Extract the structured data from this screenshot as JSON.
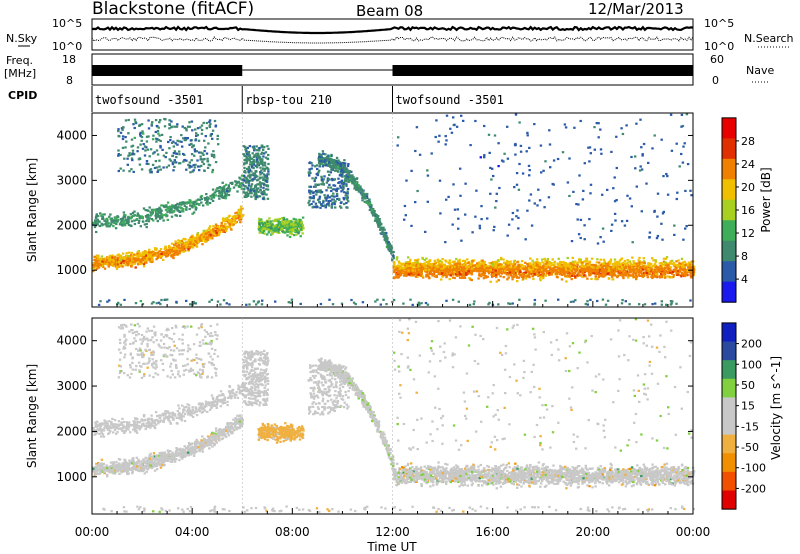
{
  "header": {
    "station": "Blackstone (fitACF)",
    "beam": "Beam 08",
    "date": "12/Mar/2013"
  },
  "noise_panel": {
    "left_label": "N.Sky",
    "right_label": "N.Search",
    "left_ticks": [
      "10^5",
      "10^0"
    ],
    "right_ticks": [
      "10^5",
      "10^0"
    ]
  },
  "freq_panel": {
    "left_label_1": "Freq.",
    "left_label_2": "[MHz]",
    "left_ticks": [
      "18",
      "8"
    ],
    "right_label": "Nave",
    "right_ticks": [
      "60",
      "0"
    ]
  },
  "cpid": {
    "label": "CPID",
    "segments": [
      {
        "name": "twofsound -3501",
        "start": 0,
        "end": 6
      },
      {
        "name": "rbsp-tou 210",
        "start": 6,
        "end": 12
      },
      {
        "name": "twofsound -3501",
        "start": 12,
        "end": 24
      }
    ]
  },
  "chart_data": [
    {
      "type": "heatmap",
      "quantity": "Power",
      "ylabel": "Slant Range [km]",
      "ylim": [
        180,
        4500
      ],
      "yticks": [
        "1000",
        "2000",
        "3000",
        "4000"
      ],
      "xlim": [
        0,
        24
      ],
      "colorbar": {
        "label": "Power [dB]",
        "range": [
          0,
          32
        ],
        "ticks": [
          "28",
          "24",
          "20",
          "16",
          "12",
          "8",
          "4"
        ],
        "colors": [
          "#1a1aee",
          "#2a5aa8",
          "#3f8a6e",
          "#3fae58",
          "#a8d020",
          "#f0c000",
          "#f08000",
          "#e03000",
          "#e80000"
        ]
      }
    },
    {
      "type": "heatmap",
      "quantity": "Velocity",
      "ylabel": "Slant Range [km]",
      "ylim": [
        180,
        4500
      ],
      "yticks": [
        "1000",
        "2000",
        "3000",
        "4000"
      ],
      "xlim": [
        0,
        24
      ],
      "colorbar": {
        "label": "Velocity [m s^-1]",
        "range": [
          -250,
          250
        ],
        "ticks": [
          "200",
          "100",
          "50",
          "15",
          "-15",
          "-50",
          "-100",
          "-200"
        ],
        "colors": [
          "#e00000",
          "#f05000",
          "#f09000",
          "#f0b040",
          "#c8c8c8",
          "#c8c8c8",
          "#80d040",
          "#3a9a60",
          "#2a4aa0",
          "#1020c0"
        ]
      }
    }
  ],
  "x_axis": {
    "label": "Time UT",
    "ticks": [
      "00:00",
      "04:00",
      "08:00",
      "12:00",
      "16:00",
      "20:00",
      "00:00"
    ]
  }
}
